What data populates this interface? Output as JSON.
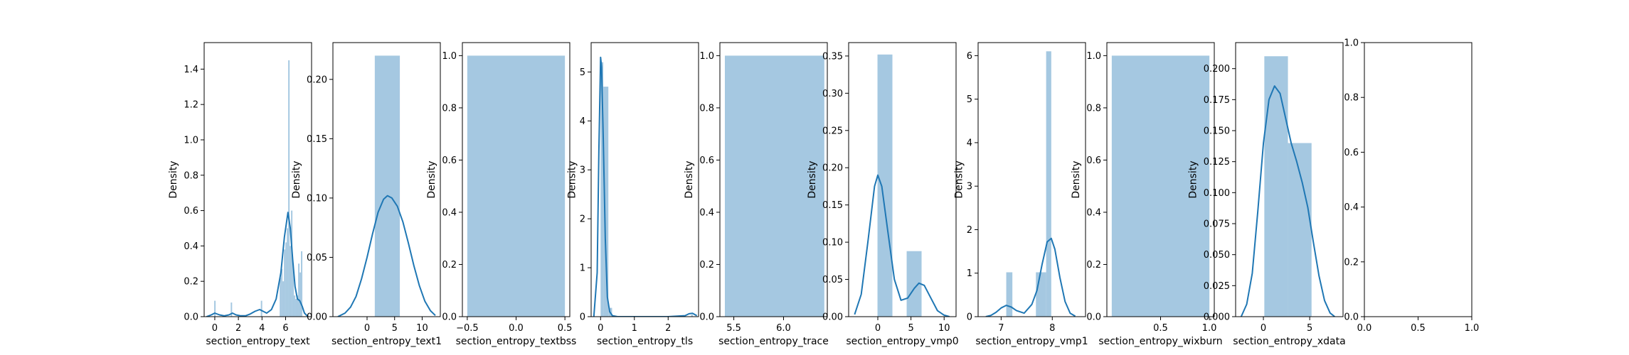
{
  "chart_data": [
    {
      "type": "histogram+kde",
      "xlabel": "section_entropy_text",
      "ylabel": "Density",
      "xlim": [
        -0.9,
        8.2
      ],
      "ylim": [
        0,
        1.55
      ],
      "xticks": [
        0,
        2,
        4,
        6
      ],
      "xtick_labels": [
        "0",
        "2",
        "4",
        "6"
      ],
      "yticks": [
        0.0,
        0.2,
        0.4,
        0.6,
        0.8,
        1.0,
        1.2,
        1.4
      ],
      "ytick_labels": [
        "0.0",
        "0.2",
        "0.4",
        "0.6",
        "0.8",
        "1.0",
        "1.2",
        "1.4"
      ],
      "bins": [
        [
          -0.05,
          0.07,
          0.09
        ],
        [
          1.35,
          1.47,
          0.08
        ],
        [
          3.9,
          4.02,
          0.09
        ],
        [
          5.5,
          5.62,
          0.22
        ],
        [
          5.62,
          5.74,
          0.27
        ],
        [
          5.74,
          5.86,
          0.2
        ],
        [
          5.86,
          5.98,
          0.38
        ],
        [
          5.98,
          6.1,
          0.42
        ],
        [
          6.1,
          6.22,
          0.5
        ],
        [
          6.22,
          6.34,
          1.45
        ],
        [
          6.34,
          6.46,
          0.4
        ],
        [
          6.46,
          6.58,
          0.6
        ],
        [
          6.58,
          6.7,
          0.3
        ],
        [
          6.7,
          6.82,
          0.12
        ],
        [
          6.82,
          6.94,
          0.1
        ],
        [
          6.94,
          7.06,
          0.12
        ],
        [
          7.06,
          7.18,
          0.3
        ],
        [
          7.18,
          7.3,
          0.25
        ],
        [
          7.3,
          7.42,
          0.37
        ]
      ],
      "kde": {
        "x": [
          -0.7,
          -0.3,
          0,
          0.4,
          0.8,
          1.2,
          1.5,
          1.8,
          2.2,
          2.6,
          3.0,
          3.4,
          3.8,
          4.1,
          4.4,
          4.8,
          5.2,
          5.6,
          5.9,
          6.2,
          6.4,
          6.6,
          6.8,
          7.0,
          7.2,
          7.4,
          7.6,
          7.9
        ],
        "y": [
          0.0,
          0.01,
          0.02,
          0.01,
          0.005,
          0.01,
          0.02,
          0.01,
          0.005,
          0.005,
          0.015,
          0.03,
          0.04,
          0.03,
          0.02,
          0.04,
          0.1,
          0.25,
          0.45,
          0.59,
          0.5,
          0.32,
          0.17,
          0.1,
          0.09,
          0.06,
          0.02,
          0.0
        ]
      }
    },
    {
      "type": "histogram+kde",
      "xlabel": "section_entropy_text1",
      "ylabel": "Density",
      "xlim": [
        -6.2,
        13.3
      ],
      "ylim": [
        0,
        0.231
      ],
      "xticks": [
        0,
        5,
        10
      ],
      "xtick_labels": [
        "0",
        "5",
        "10"
      ],
      "yticks": [
        0.0,
        0.05,
        0.1,
        0.15,
        0.2
      ],
      "ytick_labels": [
        "0.00",
        "0.05",
        "0.10",
        "0.15",
        "0.20"
      ],
      "bins": [
        [
          1.4,
          5.95,
          0.22
        ]
      ],
      "kde": {
        "x": [
          -5.3,
          -4,
          -3,
          -2,
          -1,
          0,
          1,
          2,
          3,
          3.7,
          4.5,
          5.5,
          6.5,
          7.5,
          8.5,
          9.5,
          10.5,
          11.5,
          12.4
        ],
        "y": [
          0.0,
          0.003,
          0.008,
          0.017,
          0.032,
          0.05,
          0.07,
          0.088,
          0.099,
          0.102,
          0.1,
          0.093,
          0.08,
          0.062,
          0.043,
          0.026,
          0.013,
          0.005,
          0.001
        ]
      }
    },
    {
      "type": "histogram",
      "xlabel": "section_entropy_textbss",
      "ylabel": "Density",
      "xlim": [
        -0.55,
        0.55
      ],
      "ylim": [
        0,
        1.05
      ],
      "xticks": [
        -0.5,
        0.0,
        0.5
      ],
      "xtick_labels": [
        "−0.5",
        "0.0",
        "0.5"
      ],
      "yticks": [
        0.0,
        0.2,
        0.4,
        0.6,
        0.8,
        1.0
      ],
      "ytick_labels": [
        "0.0",
        "0.2",
        "0.4",
        "0.6",
        "0.8",
        "1.0"
      ],
      "bins": [
        [
          -0.5,
          0.5,
          1.0
        ]
      ]
    },
    {
      "type": "histogram+kde",
      "xlabel": "section_entropy_tls",
      "ylabel": "Density",
      "xlim": [
        -0.28,
        2.9
      ],
      "ylim": [
        0,
        5.6
      ],
      "xticks": [
        0,
        1,
        2
      ],
      "xtick_labels": [
        "0",
        "1",
        "2"
      ],
      "yticks": [
        0,
        1,
        2,
        3,
        4,
        5
      ],
      "ytick_labels": [
        "0",
        "1",
        "2",
        "3",
        "4",
        "5"
      ],
      "bins": [
        [
          0.0,
          0.08,
          5.2
        ],
        [
          0.08,
          0.23,
          4.7
        ],
        [
          0.23,
          0.34,
          0.18
        ],
        [
          2.68,
          2.73,
          0.04
        ]
      ],
      "kde": {
        "x": [
          -0.2,
          -0.1,
          -0.05,
          0.0,
          0.03,
          0.08,
          0.14,
          0.2,
          0.27,
          0.35,
          0.5,
          1.0,
          1.5,
          2.0,
          2.5,
          2.62,
          2.72,
          2.85
        ],
        "y": [
          0.0,
          0.9,
          3.4,
          5.3,
          5.1,
          3.6,
          1.6,
          0.4,
          0.1,
          0.02,
          0.0,
          0.0,
          0.0,
          0.0,
          0.02,
          0.06,
          0.07,
          0.02
        ]
      }
    },
    {
      "type": "histogram",
      "xlabel": "section_entropy_trace",
      "ylabel": "Density",
      "xlim": [
        5.36,
        6.44
      ],
      "ylim": [
        0,
        1.05
      ],
      "xticks": [
        5.5,
        6.0
      ],
      "xtick_labels": [
        "5.5",
        "6.0"
      ],
      "yticks": [
        0.0,
        0.2,
        0.4,
        0.6,
        0.8,
        1.0
      ],
      "ytick_labels": [
        "0.0",
        "0.2",
        "0.4",
        "0.6",
        "0.8",
        "1.0"
      ],
      "bins": [
        [
          5.41,
          6.41,
          1.0
        ]
      ]
    },
    {
      "type": "histogram+kde",
      "xlabel": "section_entropy_vmp0",
      "ylabel": "Density",
      "xlim": [
        -4.4,
        11.8
      ],
      "ylim": [
        0,
        0.368
      ],
      "xticks": [
        0,
        5,
        10
      ],
      "xtick_labels": [
        "0",
        "5",
        "10"
      ],
      "yticks": [
        0.0,
        0.05,
        0.1,
        0.15,
        0.2,
        0.25,
        0.3,
        0.35
      ],
      "ytick_labels": [
        "0.00",
        "0.05",
        "0.10",
        "0.15",
        "0.20",
        "0.25",
        "0.30",
        "0.35"
      ],
      "bins": [
        [
          -0.05,
          2.2,
          0.352
        ],
        [
          4.35,
          6.6,
          0.088
        ]
      ],
      "kde": {
        "x": [
          -3.5,
          -2.5,
          -1.5,
          -0.5,
          0.0,
          0.6,
          1.5,
          2.5,
          3.5,
          4.5,
          5.5,
          6.2,
          7.0,
          8.0,
          9.0,
          10.0,
          10.8
        ],
        "y": [
          0.003,
          0.03,
          0.1,
          0.175,
          0.19,
          0.175,
          0.115,
          0.05,
          0.022,
          0.025,
          0.038,
          0.045,
          0.042,
          0.025,
          0.008,
          0.002,
          0.0
        ]
      }
    },
    {
      "type": "histogram+kde",
      "xlabel": "section_entropy_vmp1",
      "ylabel": "Density",
      "xlim": [
        6.55,
        8.65
      ],
      "ylim": [
        0,
        6.3
      ],
      "xticks": [
        7,
        8
      ],
      "xtick_labels": [
        "7",
        "8"
      ],
      "yticks": [
        0,
        1,
        2,
        3,
        4,
        5,
        6
      ],
      "ytick_labels": [
        "0",
        "1",
        "2",
        "3",
        "4",
        "5",
        "6"
      ],
      "bins": [
        [
          7.1,
          7.22,
          1.02
        ],
        [
          7.68,
          7.88,
          1.02
        ],
        [
          7.88,
          7.98,
          6.1
        ]
      ],
      "kde": {
        "x": [
          6.7,
          6.8,
          6.9,
          7.0,
          7.1,
          7.2,
          7.3,
          7.45,
          7.6,
          7.7,
          7.8,
          7.9,
          7.98,
          8.05,
          8.15,
          8.25,
          8.35,
          8.45
        ],
        "y": [
          0.0,
          0.03,
          0.1,
          0.2,
          0.26,
          0.22,
          0.14,
          0.08,
          0.28,
          0.6,
          1.2,
          1.72,
          1.8,
          1.55,
          0.9,
          0.35,
          0.08,
          0.01
        ]
      }
    },
    {
      "type": "histogram",
      "xlabel": "section_entropy_wixburn",
      "ylabel": "Density",
      "xlim": [
        -0.05,
        1.05
      ],
      "ylim": [
        0,
        1.05
      ],
      "xticks": [
        0.5,
        1.0
      ],
      "xtick_labels": [
        "0.5",
        "1.0"
      ],
      "yticks": [
        0.0,
        0.2,
        0.4,
        0.6,
        0.8,
        1.0
      ],
      "ytick_labels": [
        "0.0",
        "0.2",
        "0.4",
        "0.6",
        "0.8",
        "1.0"
      ],
      "bins": [
        [
          0.0,
          1.0,
          1.0
        ]
      ]
    },
    {
      "type": "histogram+kde",
      "xlabel": "section_entropy_xdata",
      "ylabel": "Density",
      "xlim": [
        -3.0,
        8.6
      ],
      "ylim": [
        0,
        0.221
      ],
      "xticks": [
        0,
        5
      ],
      "xtick_labels": [
        "0",
        "5"
      ],
      "yticks": [
        0.0,
        0.025,
        0.05,
        0.075,
        0.1,
        0.125,
        0.15,
        0.175,
        0.2
      ],
      "ytick_labels": [
        "0.000",
        "0.025",
        "0.050",
        "0.075",
        "0.100",
        "0.125",
        "0.150",
        "0.175",
        "0.200"
      ],
      "bins": [
        [
          0.1,
          2.65,
          0.21
        ],
        [
          2.65,
          5.2,
          0.14
        ]
      ],
      "kde": {
        "x": [
          -2.4,
          -1.8,
          -1.2,
          -0.6,
          0.0,
          0.6,
          1.2,
          1.8,
          2.4,
          3.0,
          3.6,
          4.2,
          4.8,
          5.4,
          6.0,
          6.6,
          7.2,
          7.7
        ],
        "y": [
          0.0,
          0.01,
          0.035,
          0.085,
          0.14,
          0.175,
          0.186,
          0.18,
          0.16,
          0.14,
          0.125,
          0.108,
          0.088,
          0.06,
          0.033,
          0.013,
          0.003,
          0.0
        ]
      }
    },
    {
      "type": "empty",
      "xlabel": "",
      "ylabel": "",
      "xlim": [
        0.0,
        1.0
      ],
      "ylim": [
        0.0,
        1.0
      ],
      "xticks": [
        0.0,
        0.5,
        1.0
      ],
      "xtick_labels": [
        "0.0",
        "0.5",
        "1.0"
      ],
      "yticks": [
        0.0,
        0.2,
        0.4,
        0.6,
        0.8,
        1.0
      ],
      "ytick_labels": [
        "0.0",
        "0.2",
        "0.4",
        "0.6",
        "0.8",
        "1.0"
      ],
      "bins": []
    }
  ],
  "colors": {
    "bar": "#a5c8e1",
    "line": "#1f77b4",
    "axis": "#000000"
  }
}
